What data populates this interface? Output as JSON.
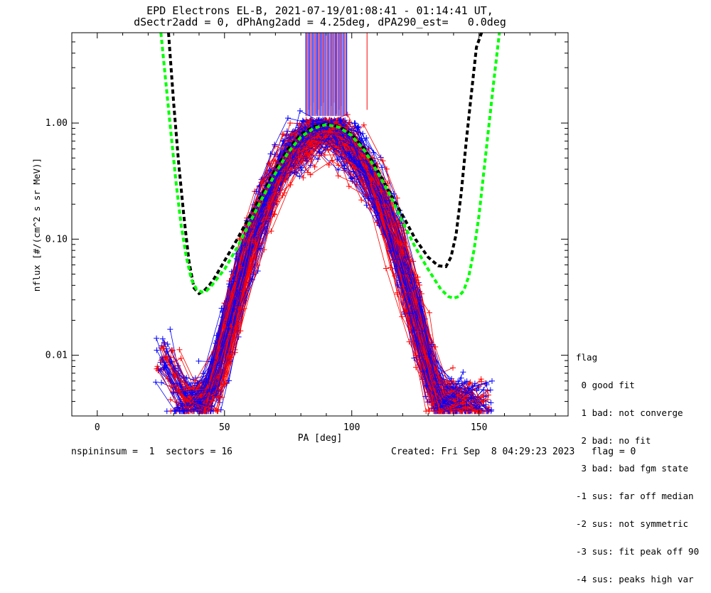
{
  "chart_data": {
    "type": "scatter",
    "title_line1": "EPD Electrons EL-B, 2021-07-19/01:08:41 - 01:14:41 UT,",
    "title_line2": "dSectr2add = 0, dPhAng2add = 4.25deg, dPA290_est=   0.0deg",
    "xlabel": "PA [deg]",
    "ylabel": "nflux [#/(cm^2 s sr MeV)]",
    "xlim": [
      -10,
      185
    ],
    "ylim": [
      0.003,
      6.0
    ],
    "yscale": "log",
    "xticks": [
      0,
      50,
      100,
      150
    ],
    "xtick_labels": [
      "0",
      "50",
      "100",
      "150"
    ],
    "yticks": [
      0.01,
      0.1,
      1.0
    ],
    "ytick_labels": [
      "0.01",
      "0.10",
      "1.00"
    ],
    "series": [
      {
        "color": "#ff0000",
        "marker": "plus",
        "line": "thin"
      },
      {
        "color": "#0000ff",
        "marker": "plus",
        "line": "thin"
      },
      {
        "color": "#000000",
        "line": "dashed-thick"
      },
      {
        "color": "#00ff00",
        "line": "dashed-thick"
      }
    ],
    "black_fit_curve": {
      "x": [
        28,
        30,
        32,
        34,
        36,
        38,
        40,
        42,
        44,
        46,
        50,
        55,
        60,
        65,
        70,
        75,
        80,
        85,
        90,
        95,
        100,
        105,
        110,
        115,
        120,
        125,
        130,
        134,
        137,
        139,
        141,
        143,
        145,
        147,
        149,
        151
      ],
      "y": [
        6.0,
        1.5,
        0.45,
        0.16,
        0.065,
        0.038,
        0.034,
        0.036,
        0.04,
        0.046,
        0.065,
        0.1,
        0.16,
        0.25,
        0.4,
        0.6,
        0.8,
        0.93,
        0.98,
        0.93,
        0.8,
        0.6,
        0.4,
        0.25,
        0.16,
        0.1,
        0.07,
        0.059,
        0.058,
        0.07,
        0.11,
        0.25,
        0.7,
        1.8,
        4.5,
        6.0
      ]
    },
    "green_fit_curve": {
      "x": [
        25,
        27,
        29,
        31,
        33,
        35,
        37,
        39,
        41,
        43,
        45,
        50,
        55,
        60,
        65,
        70,
        75,
        80,
        85,
        90,
        95,
        100,
        105,
        110,
        115,
        120,
        125,
        130,
        135,
        138,
        140,
        142,
        144,
        146,
        148,
        150,
        152,
        154,
        156,
        158
      ],
      "y": [
        6.0,
        2.2,
        0.8,
        0.3,
        0.13,
        0.07,
        0.045,
        0.037,
        0.035,
        0.036,
        0.04,
        0.055,
        0.085,
        0.14,
        0.23,
        0.37,
        0.56,
        0.76,
        0.9,
        0.97,
        0.92,
        0.78,
        0.58,
        0.38,
        0.24,
        0.14,
        0.085,
        0.055,
        0.037,
        0.032,
        0.031,
        0.032,
        0.036,
        0.048,
        0.08,
        0.16,
        0.4,
        1.0,
        2.5,
        6.0
      ]
    },
    "vertical_spikes_x": [
      82,
      83,
      84,
      85,
      86,
      87,
      88,
      89,
      90,
      91,
      92,
      93,
      94,
      95,
      96,
      97,
      98,
      106
    ],
    "spike_base_y": 1.2
  },
  "footer": {
    "left": "nspininsum =  1  sectors = 16",
    "right": "Created: Fri Sep  8 04:29:23 2023   flag = 0"
  },
  "legend": {
    "title": "flag",
    "items": [
      " 0 good fit",
      " 1 bad: not converge",
      " 2 bad: no fit",
      " 3 bad: bad fgm state",
      "-1 sus: far off median",
      "-2 sus: not symmetric",
      "-3 sus: fit peak off 90",
      "-4 sus: peaks high var"
    ]
  }
}
